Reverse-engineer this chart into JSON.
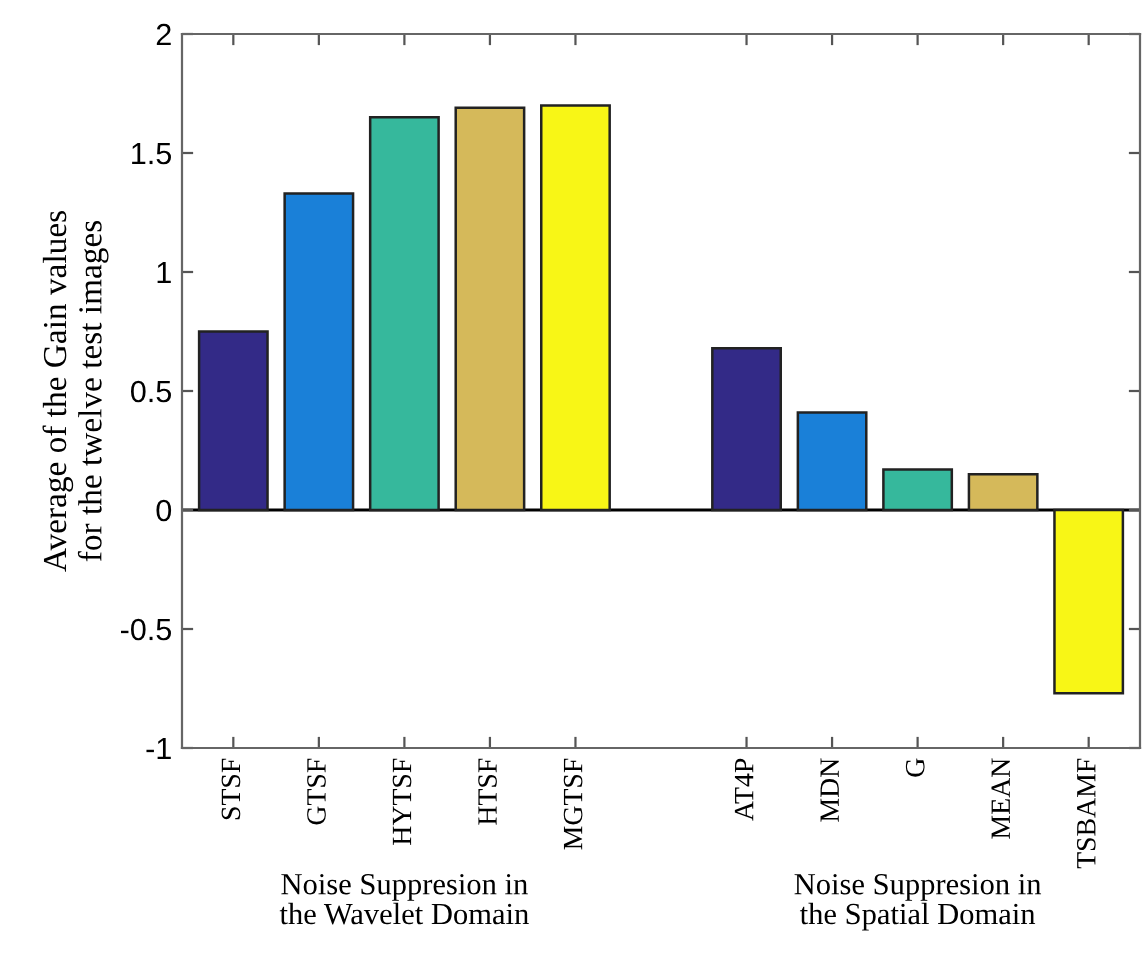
{
  "chart_data": {
    "type": "bar",
    "ylabel": "Average of the Gain values\nfor the twelve test images",
    "categories": [
      "STSF",
      "GTSF",
      "HYTSF",
      "HTSF",
      "MGTSF",
      null,
      "AT4P",
      "MDN",
      "G",
      "MEAN",
      "TSBAMF"
    ],
    "values": [
      0.75,
      1.33,
      1.65,
      1.69,
      1.7,
      null,
      0.68,
      0.41,
      0.17,
      0.15,
      -0.77
    ],
    "colors": [
      "#332a87",
      "#1a80d8",
      "#36b89c",
      "#d5b95a",
      "#f8f616",
      null,
      "#332a87",
      "#1a80d8",
      "#36b89c",
      "#d5b95a",
      "#f8f616"
    ],
    "ylim": [
      -1,
      2
    ],
    "yticks": [
      -1,
      -0.5,
      0,
      0.5,
      1,
      1.5,
      2
    ],
    "ref_lines": [
      {
        "axis": "y",
        "value": 0,
        "color": "#000000"
      }
    ],
    "annotations": [
      "Noise Suppresion in\nthe Wavelet Domain",
      "Noise Suppresion in\nthe Spatial Domain"
    ],
    "grid": false,
    "legend": false
  }
}
